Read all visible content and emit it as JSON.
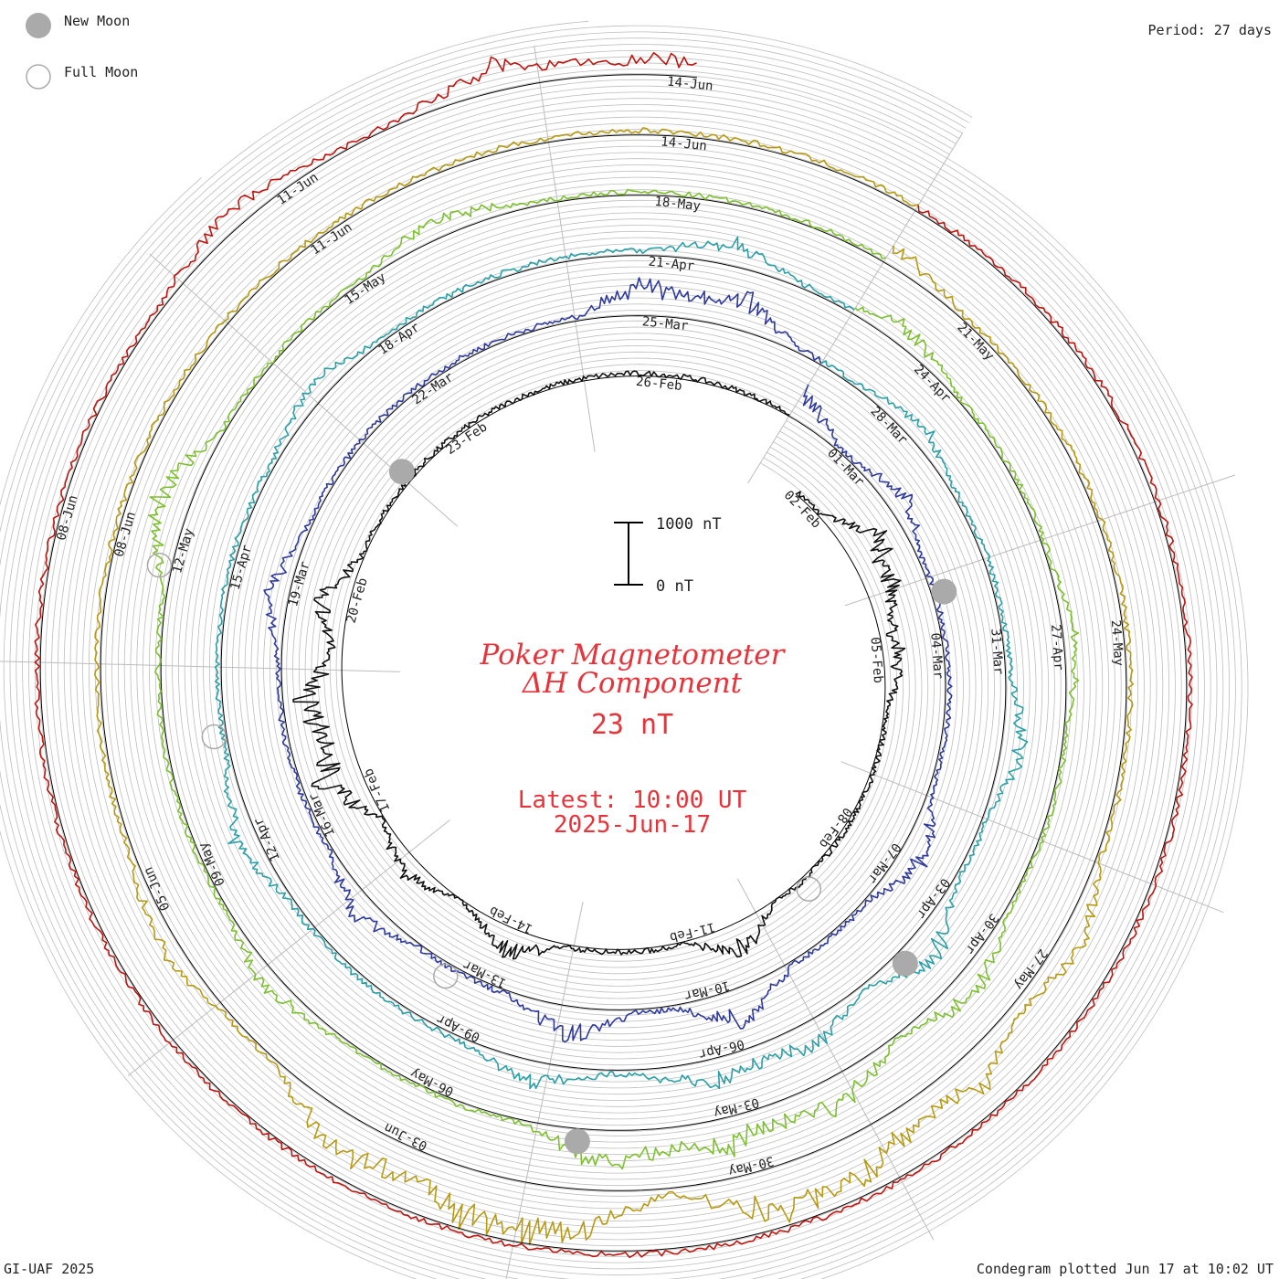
{
  "legend": {
    "new_moon": "New Moon",
    "full_moon": "Full Moon"
  },
  "period_label": "Period: 27 days",
  "footer_left": "GI-UAF 2025",
  "footer_right": "Condegram plotted Jun 17 at 10:02 UT",
  "scale_bar": {
    "top_label": "1000 nT",
    "bottom_label": "0 nT"
  },
  "title": {
    "line1": "Poker Magnetometer",
    "line2": "ΔH Component"
  },
  "current_value": "23 nT",
  "latest": {
    "line1": "Latest: 10:00 UT",
    "line2": "2025-Jun-17"
  },
  "colors": {
    "grid": "#bdbdbd",
    "baseline": "#000000",
    "moon": "#aaaaaa",
    "accent_red": "#e8333a"
  },
  "chart_data": {
    "type": "line",
    "chart_style": "condegram spiral",
    "period_days": 27,
    "units": "nT",
    "series": [
      {
        "cycle": 1,
        "date_labels": [
          "02-Feb",
          "05-Feb",
          "08-Feb",
          "11-Feb",
          "14-Feb",
          "17-Feb",
          "20-Feb",
          "23-Feb",
          "26-Feb"
        ],
        "color": "#111111",
        "quiet_level": 40,
        "storms": [
          [
            0.08,
            700
          ],
          [
            0.11,
            500
          ],
          [
            0.15,
            350
          ],
          [
            0.35,
            550
          ],
          [
            0.48,
            500
          ],
          [
            0.55,
            350
          ],
          [
            0.61,
            850
          ],
          [
            0.65,
            900
          ],
          [
            0.7,
            600
          ]
        ]
      },
      {
        "cycle": 2,
        "date_labels": [
          "01-Mar",
          "04-Mar",
          "07-Mar",
          "10-Mar",
          "13-Mar",
          "16-Mar",
          "19-Mar",
          "22-Mar",
          "25-Mar"
        ],
        "color": "#2e3a9e",
        "quiet_level": 60,
        "storms": [
          [
            0.0,
            500
          ],
          [
            0.07,
            350
          ],
          [
            0.25,
            500
          ],
          [
            0.36,
            650
          ],
          [
            0.44,
            600
          ],
          [
            0.55,
            400
          ],
          [
            0.7,
            350
          ],
          [
            0.92,
            700
          ],
          [
            0.96,
            600
          ]
        ]
      },
      {
        "cycle": 3,
        "date_labels": [
          "28-Mar",
          "31-Mar",
          "03-Apr",
          "06-Apr",
          "09-Apr",
          "12-Apr",
          "15-Apr",
          "18-Apr",
          "21-Apr"
        ],
        "color": "#2aa0a8",
        "quiet_level": 70,
        "storms": [
          [
            0.05,
            300
          ],
          [
            0.19,
            400
          ],
          [
            0.28,
            600
          ],
          [
            0.34,
            500
          ],
          [
            0.38,
            450
          ],
          [
            0.45,
            350
          ],
          [
            0.6,
            400
          ],
          [
            0.78,
            300
          ],
          [
            0.95,
            400
          ]
        ]
      },
      {
        "cycle": 4,
        "date_labels": [
          "24-Apr",
          "27-Apr",
          "30-Apr",
          "03-May",
          "06-May",
          "09-May",
          "12-May",
          "15-May",
          "18-May"
        ],
        "color": "#7dc02e",
        "quiet_level": 50,
        "storms": [
          [
            0.02,
            350
          ],
          [
            0.15,
            200
          ],
          [
            0.28,
            500
          ],
          [
            0.34,
            600
          ],
          [
            0.38,
            650
          ],
          [
            0.42,
            700
          ],
          [
            0.55,
            300
          ],
          [
            0.72,
            700
          ],
          [
            0.85,
            350
          ]
        ]
      },
      {
        "cycle": 5,
        "date_labels": [
          "21-May",
          "24-May",
          "27-May",
          "30-May",
          "03-Jun",
          "05-Jun",
          "08-Jun",
          "11-Jun",
          "14-Jun"
        ],
        "color": "#b89a12",
        "quiet_level": 70,
        "storms": [
          [
            0.0,
            350
          ],
          [
            0.25,
            450
          ],
          [
            0.3,
            700
          ],
          [
            0.34,
            800
          ],
          [
            0.37,
            900
          ],
          [
            0.43,
            950
          ],
          [
            0.46,
            1000
          ],
          [
            0.5,
            900
          ],
          [
            0.58,
            300
          ]
        ]
      },
      {
        "cycle": 6,
        "date_labels": [
          "",
          "",
          "",
          "",
          "",
          "",
          "08-Jun",
          "11-Jun",
          "14-Jun"
        ],
        "color": "#c0150f",
        "quiet_level": 60,
        "storms": [
          [
            0.8,
            350
          ],
          [
            0.88,
            500
          ],
          [
            0.92,
            300
          ]
        ]
      }
    ]
  }
}
